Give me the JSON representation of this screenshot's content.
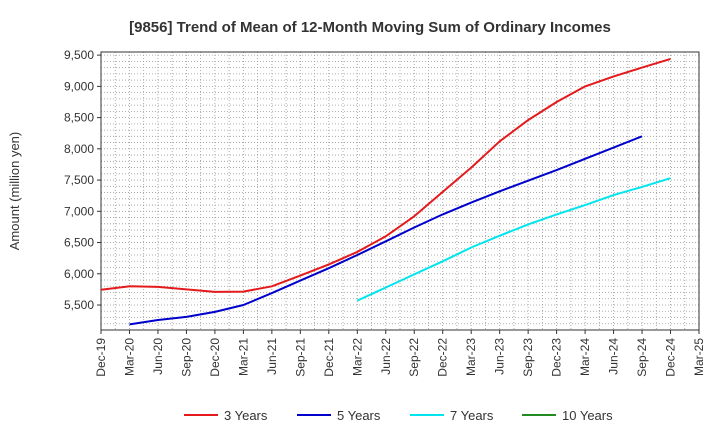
{
  "chart_data": {
    "type": "line",
    "title": "[9856]  Trend of Mean of 12-Month Moving Sum of Ordinary Incomes",
    "ylabel": "Amount (million yen)",
    "xlabel": "",
    "ylim": [
      5100,
      9550
    ],
    "yticks": [
      5500,
      6000,
      6500,
      7000,
      7500,
      8000,
      8500,
      9000,
      9500
    ],
    "ytick_labels": [
      "5,500",
      "6,000",
      "6,500",
      "7,000",
      "7,500",
      "8,000",
      "8,500",
      "9,000",
      "9,500"
    ],
    "x_categories": [
      "Dec-19",
      "Mar-20",
      "Jun-20",
      "Sep-20",
      "Dec-20",
      "Mar-21",
      "Jun-21",
      "Sep-21",
      "Dec-21",
      "Mar-22",
      "Jun-22",
      "Sep-22",
      "Dec-22",
      "Mar-23",
      "Jun-23",
      "Sep-23",
      "Dec-23",
      "Mar-24",
      "Jun-24",
      "Sep-24",
      "Dec-24",
      "Mar-25"
    ],
    "grid": true,
    "legend_position": "bottom",
    "series": [
      {
        "name": "3 Years",
        "color": "#e41a1c",
        "start_index": 0,
        "values": [
          5745,
          5800,
          5790,
          5750,
          5710,
          5715,
          5800,
          5970,
          6150,
          6350,
          6600,
          6920,
          7310,
          7700,
          8120,
          8460,
          8750,
          9000,
          9160,
          9300,
          9440
        ]
      },
      {
        "name": "5 Years",
        "color": "#0000cc",
        "start_index": 1,
        "values": [
          5190,
          5260,
          5310,
          5390,
          5500,
          5690,
          5890,
          6090,
          6300,
          6520,
          6740,
          6950,
          7140,
          7320,
          7490,
          7660,
          7840,
          8020,
          8200
        ]
      },
      {
        "name": "7 Years",
        "color": "#00e5ee",
        "start_index": 9,
        "values": [
          5570,
          5780,
          5990,
          6200,
          6420,
          6610,
          6790,
          6950,
          7100,
          7260,
          7390,
          7530
        ]
      },
      {
        "name": "10 Years",
        "color": "#228b22",
        "start_index": 0,
        "values": []
      }
    ]
  }
}
